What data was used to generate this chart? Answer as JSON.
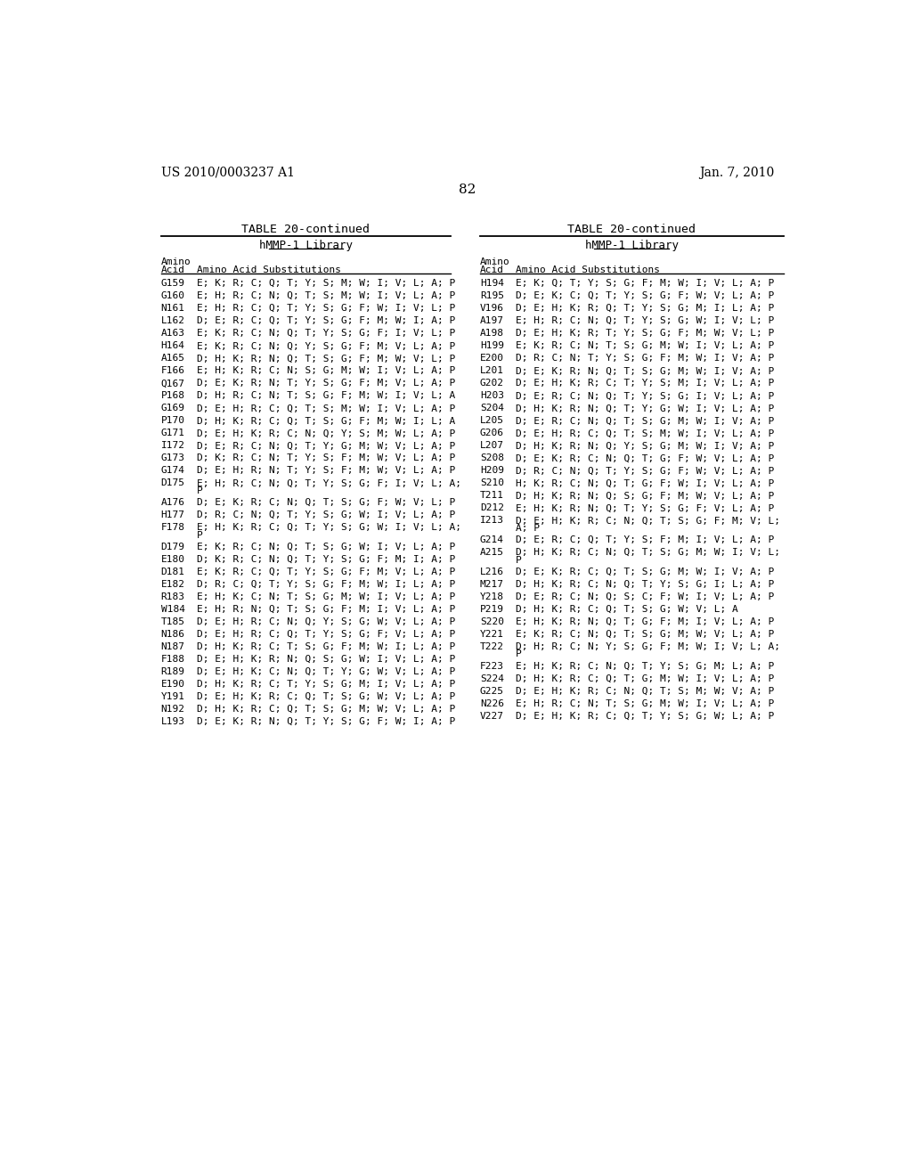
{
  "header_left": "US 2010/0003237 A1",
  "header_right": "Jan. 7, 2010",
  "page_number": "82",
  "table_title": "TABLE 20-continued",
  "subtable_title": "hMMP-1 Library",
  "left_data": [
    [
      "G159",
      "E; K; R; C; Q; T; Y; S; M; W; I; V; L; A; P",
      false
    ],
    [
      "G160",
      "E; H; R; C; N; Q; T; S; M; W; I; V; L; A; P",
      false
    ],
    [
      "N161",
      "E; H; R; C; Q; T; Y; S; G; F; W; I; V; L; P",
      false
    ],
    [
      "L162",
      "D; E; R; C; Q; T; Y; S; G; F; M; W; I; A; P",
      false
    ],
    [
      "A163",
      "E; K; R; C; N; Q; T; Y; S; G; F; I; V; L; P",
      false
    ],
    [
      "H164",
      "E; K; R; C; N; Q; Y; S; G; F; M; V; L; A; P",
      false
    ],
    [
      "A165",
      "D; H; K; R; N; Q; T; S; G; F; M; W; V; L; P",
      false
    ],
    [
      "F166",
      "E; H; K; R; C; N; S; G; M; W; I; V; L; A; P",
      false
    ],
    [
      "Q167",
      "D; E; K; R; N; T; Y; S; G; F; M; V; L; A; P",
      false
    ],
    [
      "P168",
      "D; H; R; C; N; T; S; G; F; M; W; I; V; L; A",
      false
    ],
    [
      "G169",
      "D; E; H; R; C; Q; T; S; M; W; I; V; L; A; P",
      false
    ],
    [
      "P170",
      "D; H; K; R; C; Q; T; S; G; F; M; W; I; L; A",
      false
    ],
    [
      "G171",
      "D; E; H; K; R; C; N; Q; Y; S; M; W; L; A; P",
      false
    ],
    [
      "I172",
      "D; E; R; C; N; Q; T; Y; G; M; W; V; L; A; P",
      false
    ],
    [
      "G173",
      "D; K; R; C; N; T; Y; S; F; M; W; V; L; A; P",
      false
    ],
    [
      "G174",
      "D; E; H; R; N; T; Y; S; F; M; W; V; L; A; P",
      false
    ],
    [
      "D175",
      "E; H; R; C; N; Q; T; Y; S; G; F; I; V; L; A;",
      true
    ],
    [
      "A176",
      "D; E; K; R; C; N; Q; T; S; G; F; W; V; L; P",
      false
    ],
    [
      "H177",
      "D; R; C; N; Q; T; Y; S; G; W; I; V; L; A; P",
      false
    ],
    [
      "F178",
      "E; H; K; R; C; Q; T; Y; S; G; W; I; V; L; A;",
      true
    ],
    [
      "D179",
      "E; K; R; C; N; Q; T; S; G; W; I; V; L; A; P",
      false
    ],
    [
      "E180",
      "D; K; R; C; N; Q; T; Y; S; G; F; M; I; A; P",
      false
    ],
    [
      "D181",
      "E; K; R; C; Q; T; Y; S; G; F; M; V; L; A; P",
      false
    ],
    [
      "E182",
      "D; R; C; Q; T; Y; S; G; F; M; W; I; L; A; P",
      false
    ],
    [
      "R183",
      "E; H; K; C; N; T; S; G; M; W; I; V; L; A; P",
      false
    ],
    [
      "W184",
      "E; H; R; N; Q; T; S; G; F; M; I; V; L; A; P",
      false
    ],
    [
      "T185",
      "D; E; H; R; C; N; Q; Y; S; G; W; V; L; A; P",
      false
    ],
    [
      "N186",
      "D; E; H; R; C; Q; T; Y; S; G; F; V; L; A; P",
      false
    ],
    [
      "N187",
      "D; H; K; R; C; T; S; G; F; M; W; I; L; A; P",
      false
    ],
    [
      "F188",
      "D; E; H; K; R; N; Q; S; G; W; I; V; L; A; P",
      false
    ],
    [
      "R189",
      "D; E; H; K; C; N; Q; T; Y; G; W; V; L; A; P",
      false
    ],
    [
      "E190",
      "D; H; K; R; C; T; Y; S; G; M; I; V; L; A; P",
      false
    ],
    [
      "Y191",
      "D; E; H; K; R; C; Q; T; S; G; W; V; L; A; P",
      false
    ],
    [
      "N192",
      "D; H; K; R; C; Q; T; S; G; M; W; V; L; A; P",
      false
    ],
    [
      "L193",
      "D; E; K; R; N; Q; T; Y; S; G; F; W; I; A; P",
      false
    ]
  ],
  "right_data": [
    [
      "H194",
      "E; K; Q; T; Y; S; G; F; M; W; I; V; L; A; P",
      false
    ],
    [
      "R195",
      "D; E; K; C; Q; T; Y; S; G; F; W; V; L; A; P",
      false
    ],
    [
      "V196",
      "D; E; H; K; R; Q; T; Y; S; G; M; I; L; A; P",
      false
    ],
    [
      "A197",
      "E; H; R; C; N; Q; T; Y; S; G; W; I; V; L; P",
      false
    ],
    [
      "A198",
      "D; E; H; K; R; T; Y; S; G; F; M; W; V; L; P",
      false
    ],
    [
      "H199",
      "E; K; R; C; N; T; S; G; M; W; I; V; L; A; P",
      false
    ],
    [
      "E200",
      "D; R; C; N; T; Y; S; G; F; M; W; I; V; A; P",
      false
    ],
    [
      "L201",
      "D; E; K; R; N; Q; T; S; G; M; W; I; V; A; P",
      false
    ],
    [
      "G202",
      "D; E; H; K; R; C; T; Y; S; M; I; V; L; A; P",
      false
    ],
    [
      "H203",
      "D; E; R; C; N; Q; T; Y; S; G; I; V; L; A; P",
      false
    ],
    [
      "S204",
      "D; H; K; R; N; Q; T; Y; G; W; I; V; L; A; P",
      false
    ],
    [
      "L205",
      "D; E; R; C; N; Q; T; S; G; M; W; I; V; A; P",
      false
    ],
    [
      "G206",
      "D; E; H; R; C; Q; T; S; M; W; I; V; L; A; P",
      false
    ],
    [
      "L207",
      "D; H; K; R; N; Q; Y; S; G; M; W; I; V; A; P",
      false
    ],
    [
      "S208",
      "D; E; K; R; C; N; Q; T; G; F; W; V; L; A; P",
      false
    ],
    [
      "H209",
      "D; R; C; N; Q; T; Y; S; G; F; W; V; L; A; P",
      false
    ],
    [
      "S210",
      "H; K; R; C; N; Q; T; G; F; W; I; V; L; A; P",
      false
    ],
    [
      "T211",
      "D; H; K; R; N; Q; S; G; F; M; W; V; L; A; P",
      false
    ],
    [
      "D212",
      "E; H; K; R; N; Q; T; Y; S; G; F; V; L; A; P",
      false
    ],
    [
      "I213",
      "D; E; H; K; R; C; N; Q; T; S; G; F; M; V; L;",
      true
    ],
    [
      "G214",
      "D; E; R; C; Q; T; Y; S; F; M; I; V; L; A; P",
      false
    ],
    [
      "A215",
      "D; H; K; R; C; N; Q; T; S; G; M; W; I; V; L;",
      true
    ],
    [
      "L216",
      "D; E; K; R; C; Q; T; S; G; M; W; I; V; A; P",
      false
    ],
    [
      "M217",
      "D; H; K; R; C; N; Q; T; Y; S; G; I; L; A; P",
      false
    ],
    [
      "Y218",
      "D; E; R; C; N; Q; S; C; F; W; I; V; L; A; P",
      false
    ],
    [
      "P219",
      "D; H; K; R; C; Q; T; S; G; W; V; L; A",
      false
    ],
    [
      "S220",
      "E; H; K; R; N; Q; T; G; F; M; I; V; L; A; P",
      false
    ],
    [
      "Y221",
      "E; K; R; C; N; Q; T; S; G; M; W; V; L; A; P",
      false
    ],
    [
      "T222",
      "D; H; R; C; N; Y; S; G; F; M; W; I; V; L; A;",
      true
    ],
    [
      "F223",
      "E; H; K; R; C; N; Q; T; Y; S; G; M; L; A; P",
      false
    ],
    [
      "S224",
      "D; H; K; R; C; Q; T; G; M; W; I; V; L; A; P",
      false
    ],
    [
      "G225",
      "D; E; H; K; R; C; N; Q; T; S; M; W; V; A; P",
      false
    ],
    [
      "N226",
      "E; H; R; C; N; T; S; G; M; W; I; V; L; A; P",
      false
    ],
    [
      "V227",
      "D; E; H; K; R; C; Q; T; Y; S; G; W; L; A; P",
      false
    ]
  ],
  "wrap_continuation_left": {
    "D175": "P",
    "F178": "P"
  },
  "wrap_continuation_right": {
    "I213": "A; P",
    "A215": "P",
    "T222": "P"
  }
}
